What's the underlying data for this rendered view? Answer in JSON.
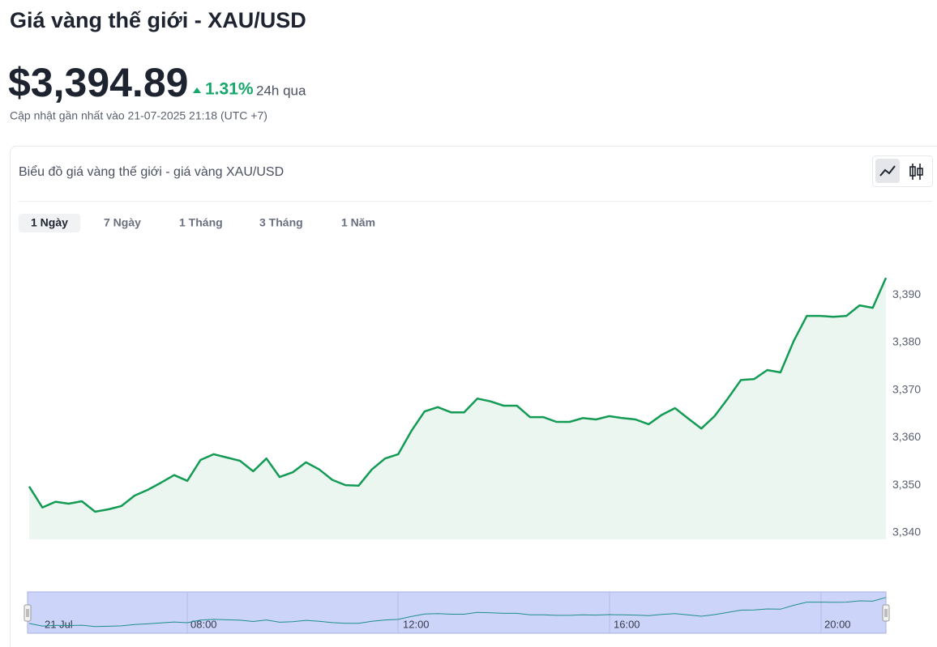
{
  "header": {
    "title": "Giá vàng thế giới - XAU/USD",
    "price": "$3,394.89",
    "change": "1.31%",
    "period": "24h qua",
    "updated": "Cập nhật gần nhất vào 21-07-2025 21:18 (UTC +7)"
  },
  "card": {
    "title": "Biểu đồ giá vàng thế giới - giá vàng XAU/USD",
    "tabs": [
      "1 Ngày",
      "7 Ngày",
      "1 Tháng",
      "3 Tháng",
      "1 Năm"
    ]
  },
  "navigator": {
    "labels": [
      "21 Jul",
      "08:00",
      "12:00",
      "16:00",
      "20:00"
    ]
  },
  "chart_data": {
    "type": "line",
    "color": "#139b55",
    "fill": "#eaf6ef",
    "values": [
      3349.7,
      3345.3,
      3346.5,
      3346.1,
      3346.6,
      3344.4,
      3344.9,
      3345.6,
      3347.8,
      3349.0,
      3350.5,
      3352.1,
      3350.9,
      3355.3,
      3356.5,
      3355.8,
      3355.1,
      3352.9,
      3355.6,
      3351.7,
      3352.7,
      3354.8,
      3353.3,
      3351.1,
      3350.0,
      3349.9,
      3353.3,
      3355.6,
      3356.5,
      3361.4,
      3365.5,
      3366.4,
      3365.3,
      3365.3,
      3368.2,
      3367.6,
      3366.7,
      3366.7,
      3364.3,
      3364.3,
      3363.3,
      3363.3,
      3364.1,
      3363.8,
      3364.5,
      3364.1,
      3363.8,
      3362.8,
      3364.8,
      3366.2,
      3364.0,
      3361.9,
      3364.5,
      3368.2,
      3372.1,
      3372.3,
      3374.2,
      3373.7,
      3380.3,
      3385.6,
      3385.6,
      3385.4,
      3385.6,
      3387.8,
      3387.3,
      3393.6
    ],
    "ylim": [
      3338.6,
      3396
    ],
    "yticks": [
      {
        "value": 3340,
        "label": "3,340"
      },
      {
        "value": 3350,
        "label": "3,350"
      },
      {
        "value": 3360,
        "label": "3,360"
      },
      {
        "value": 3370,
        "label": "3,370"
      },
      {
        "value": 3380,
        "label": "3,380"
      },
      {
        "value": 3390,
        "label": "3,390"
      }
    ]
  }
}
